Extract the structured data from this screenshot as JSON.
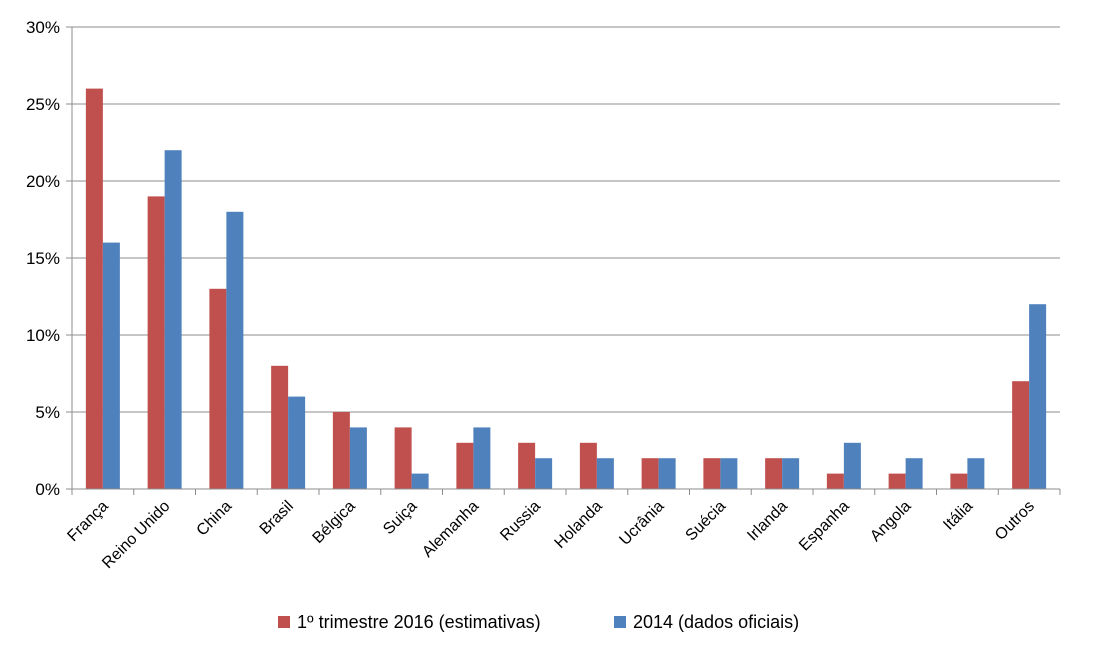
{
  "chart_data": {
    "type": "bar",
    "title": "",
    "xlabel": "",
    "ylabel": "",
    "ylim": [
      0,
      0.3
    ],
    "yticks": [
      "0%",
      "5%",
      "10%",
      "15%",
      "20%",
      "25%",
      "30%"
    ],
    "ytick_values": [
      0,
      0.05,
      0.1,
      0.15,
      0.2,
      0.25,
      0.3
    ],
    "grid": true,
    "legend_position": "bottom",
    "categories": [
      "França",
      "Reino Unido",
      "China",
      "Brasil",
      "Bélgica",
      "Suiça",
      "Alemanha",
      "Russia",
      "Holanda",
      "Ucrânia",
      "Suécia",
      "Irlanda",
      "Espanha",
      "Angola",
      "Itália",
      "Outros"
    ],
    "series": [
      {
        "name": "1º trimestre 2016 (estimativas)",
        "color": "#c0504d",
        "values": [
          0.26,
          0.19,
          0.13,
          0.08,
          0.05,
          0.04,
          0.03,
          0.03,
          0.03,
          0.02,
          0.02,
          0.02,
          0.01,
          0.01,
          0.01,
          0.07
        ]
      },
      {
        "name": "2014 (dados oficiais)",
        "color": "#4f81bd",
        "values": [
          0.16,
          0.22,
          0.18,
          0.06,
          0.04,
          0.01,
          0.04,
          0.02,
          0.02,
          0.02,
          0.02,
          0.02,
          0.03,
          0.02,
          0.02,
          0.12
        ]
      }
    ]
  }
}
